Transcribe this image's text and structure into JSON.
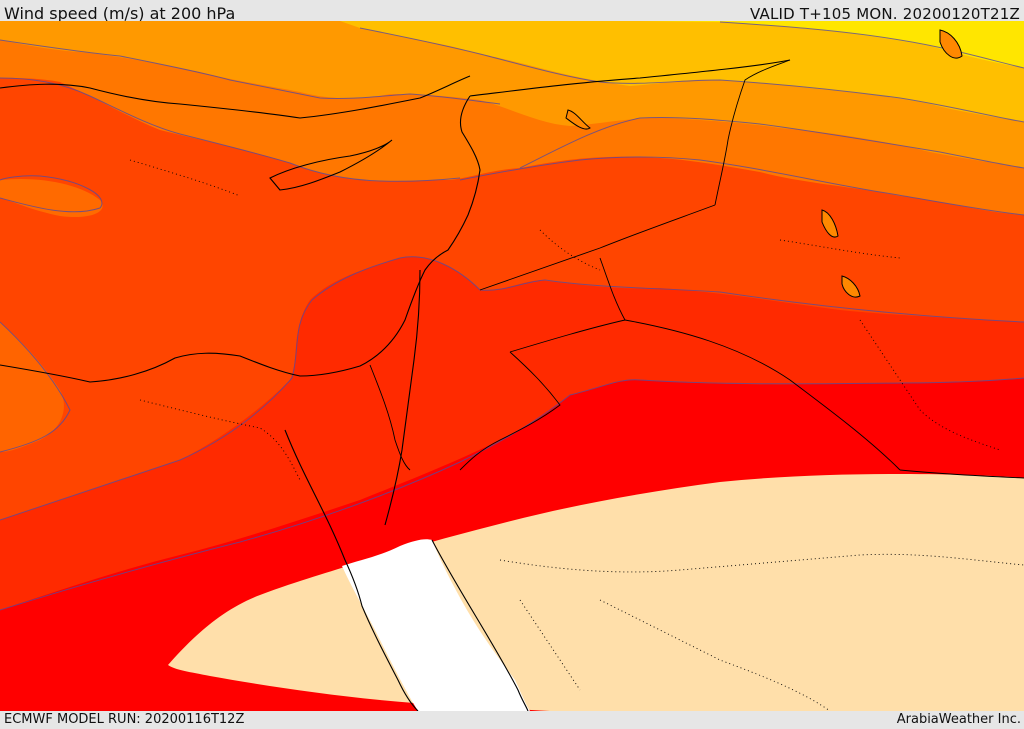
{
  "header": {
    "title": "Wind speed (m/s) at 200 hPa",
    "valid": "VALID T+105 MON. 20200120T21Z"
  },
  "footer": {
    "model_run": "ECMWF MODEL RUN: 20200116T12Z",
    "credit": "ArabiaWeather Inc."
  },
  "map": {
    "variable": "wind speed",
    "level": "200 hPa",
    "units": "m/s",
    "region": "Eastern Mediterranean / Middle East",
    "colors": {
      "yellow": "#ffe600",
      "light_orange": "#ffbf00",
      "orange": "#ff9900",
      "dark_orange": "#ff7700",
      "red_orange": "#ff4500",
      "orange_red": "#ff2a00",
      "red": "#ff0000",
      "below_threshold": "#ffdfaa",
      "sea_white": "#ffffff"
    }
  }
}
